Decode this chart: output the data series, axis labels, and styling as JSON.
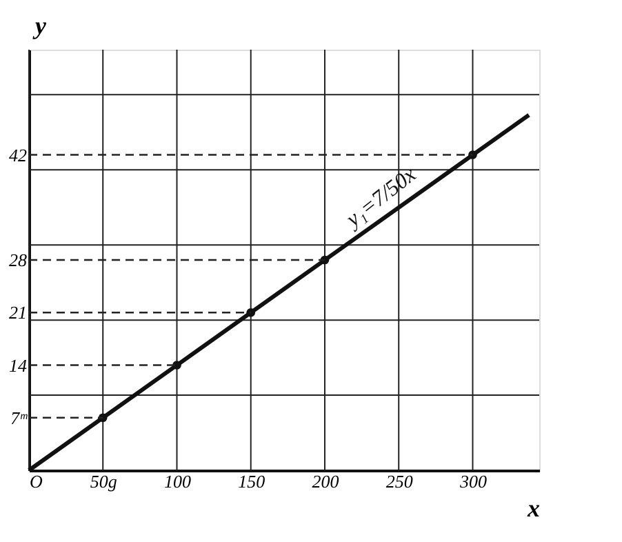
{
  "chart_data": {
    "type": "line",
    "xlabel": "x",
    "ylabel": "y",
    "series": [
      {
        "color": "#111111",
        "x": [
          0,
          338
        ],
        "values": [
          0,
          47.3
        ],
        "marker": "none"
      },
      {
        "type": "scatter",
        "color": "#111111",
        "x": [
          50,
          100,
          150,
          200,
          300
        ],
        "values": [
          7,
          14,
          21,
          28,
          42
        ],
        "marker": "circle"
      },
      {
        "type": "line",
        "color": "#222222",
        "x": [
          0,
          50
        ],
        "values": [
          7,
          7
        ],
        "line_style": "dashed",
        "marker": "none"
      },
      {
        "type": "line",
        "color": "#222222",
        "x": [
          0,
          100
        ],
        "values": [
          14,
          14
        ],
        "line_style": "dashed",
        "marker": "none"
      },
      {
        "type": "line",
        "color": "#222222",
        "x": [
          0,
          150
        ],
        "values": [
          21,
          21
        ],
        "line_style": "dashed",
        "marker": "none"
      },
      {
        "type": "line",
        "color": "#222222",
        "x": [
          0,
          200
        ],
        "values": [
          28,
          28
        ],
        "line_style": "dashed",
        "marker": "none"
      },
      {
        "type": "line",
        "color": "#222222",
        "x": [
          0,
          300
        ],
        "values": [
          42,
          42
        ],
        "line_style": "dashed",
        "marker": "none"
      }
    ],
    "xlim": [
      0,
      345
    ],
    "ylim": [
      0,
      56
    ],
    "xticks": [
      {
        "value": 0,
        "label": "O"
      },
      {
        "value": 50,
        "label": "50g"
      },
      100,
      150,
      200,
      250,
      300
    ],
    "yticks": [
      {
        "value": 7,
        "label": "7ᵐ"
      },
      {
        "value": 10,
        "label": null
      },
      14,
      {
        "value": 20,
        "label": null
      },
      21,
      28,
      {
        "value": 30,
        "label": null
      },
      {
        "value": 40,
        "label": null
      },
      42,
      {
        "value": 50,
        "label": null
      }
    ],
    "grid": true,
    "annotations": [
      "y₁=7/50x"
    ]
  }
}
